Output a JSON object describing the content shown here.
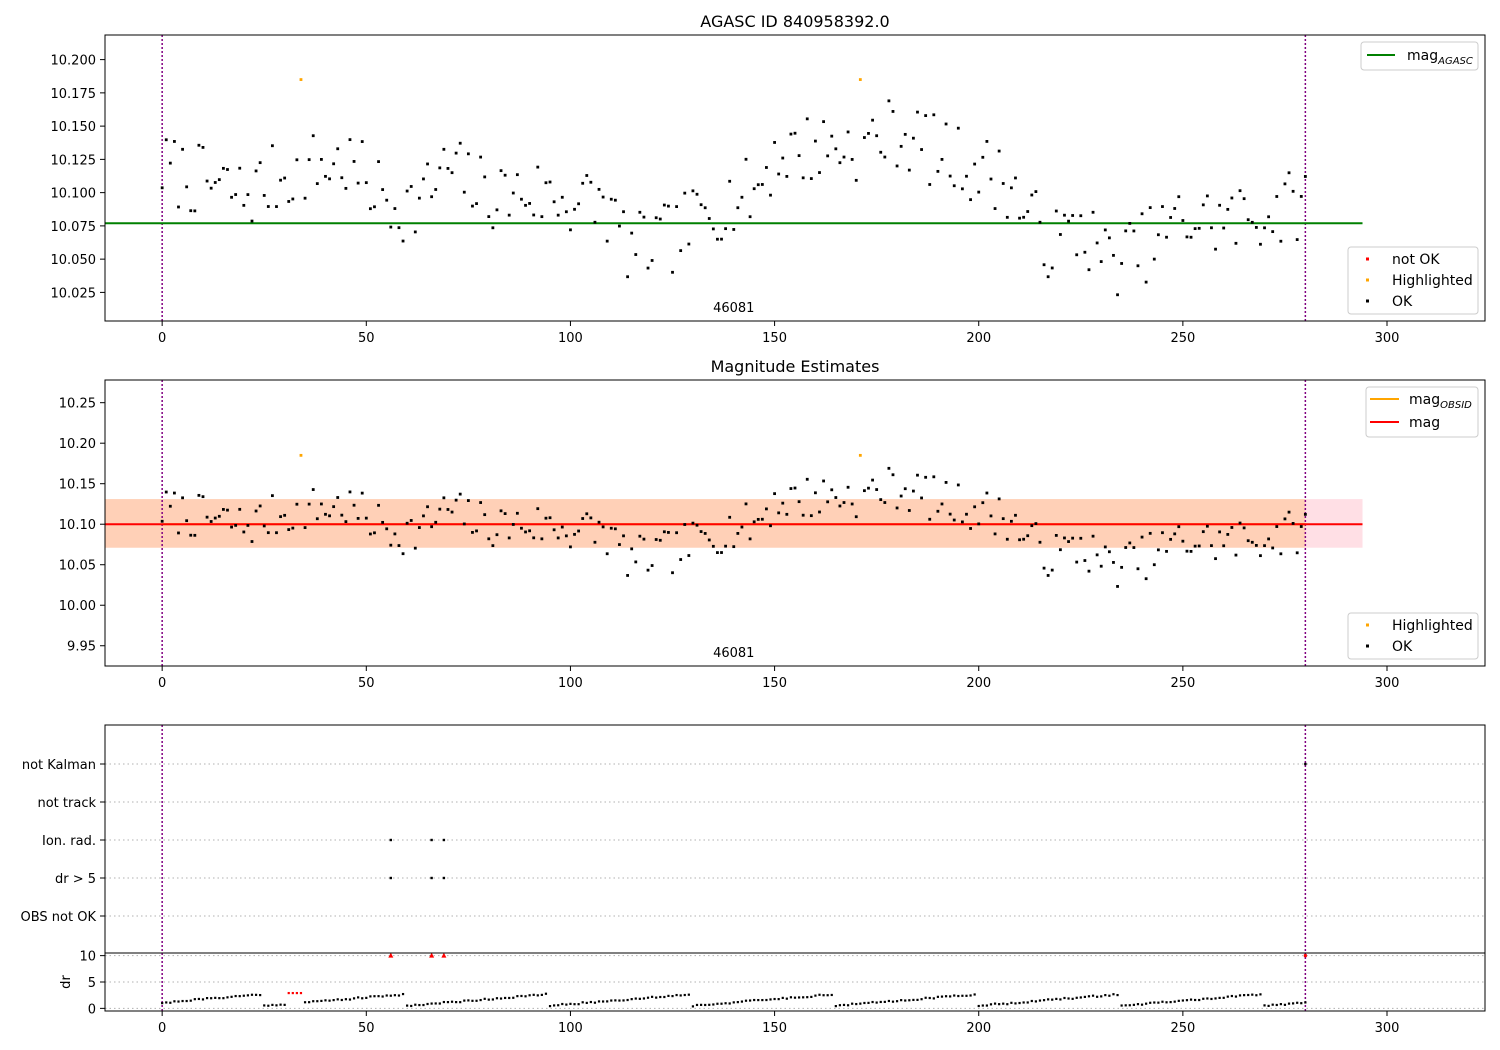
{
  "colors": {
    "ok": "#000000",
    "not_ok": "#ff0000",
    "highlighted": "#ffa500",
    "mag_agasc": "#008000",
    "mag_obsid": "#ffa500",
    "mag": "#ff0000",
    "band_mag": "#ffc0cb",
    "band_obsid": "#ffbf7f",
    "boundary": "#800080",
    "grid": "#b0b0b0"
  },
  "chart_data": [
    {
      "type": "scatter",
      "id": "agasc",
      "title": "AGASC ID 840958392.0",
      "xlim": [
        -14,
        324
      ],
      "ylim": [
        10.0035,
        10.2185
      ],
      "xticks": [
        0,
        50,
        100,
        150,
        200,
        250,
        300
      ],
      "yticks": [
        10.025,
        10.05,
        10.075,
        10.1,
        10.125,
        10.15,
        10.175,
        10.2
      ],
      "ytick_labels": [
        "10.025",
        "10.050",
        "10.075",
        "10.100",
        "10.125",
        "10.150",
        "10.175",
        "10.200"
      ],
      "hline": {
        "name": "mag_AGASC",
        "y": 10.077,
        "x": [
          -14,
          294
        ],
        "color": "#008000"
      },
      "obs_boundaries": [
        0,
        280
      ],
      "annotation": {
        "text": "46081",
        "x": 140
      },
      "legend_lines": [
        {
          "label": "mag",
          "sub": "AGASC",
          "color": "#008000"
        }
      ],
      "legend_points": [
        {
          "label": "not OK",
          "color": "#ff0000"
        },
        {
          "label": "Highlighted",
          "color": "#ffa500"
        },
        {
          "label": "OK",
          "color": "#000000"
        }
      ],
      "highlighted_points": [
        [
          34,
          10.185
        ],
        [
          171,
          10.185
        ]
      ]
    },
    {
      "type": "scatter",
      "id": "estimates",
      "title": "Magnitude Estimates",
      "xlim": [
        -14,
        324
      ],
      "ylim": [
        9.925,
        10.278
      ],
      "xticks": [
        0,
        50,
        100,
        150,
        200,
        250,
        300
      ],
      "yticks": [
        9.95,
        10.0,
        10.05,
        10.1,
        10.15,
        10.2,
        10.25
      ],
      "ytick_labels": [
        "9.95",
        "10.00",
        "10.05",
        "10.10",
        "10.15",
        "10.20",
        "10.25"
      ],
      "hline": {
        "name": "mag",
        "y": 10.1,
        "x": [
          -14,
          294
        ],
        "color": "#ff0000"
      },
      "band_mag": {
        "y": [
          10.071,
          10.131
        ],
        "x": [
          -14,
          294
        ]
      },
      "band_obsid": {
        "y": [
          10.071,
          10.131
        ],
        "x": [
          -14,
          280
        ]
      },
      "obsid_line": {
        "y": 10.1,
        "x": [
          0,
          280
        ]
      },
      "obs_boundaries": [
        0,
        280
      ],
      "annotation": {
        "text": "46081",
        "x": 140
      },
      "legend_lines": [
        {
          "label": "mag",
          "sub": "OBSID",
          "color": "#ffa500"
        },
        {
          "label": "mag",
          "sub": "",
          "color": "#ff0000"
        }
      ],
      "legend_points": [
        {
          "label": "Highlighted",
          "color": "#ffa500"
        },
        {
          "label": "OK",
          "color": "#000000"
        }
      ],
      "highlighted_points": [
        [
          34,
          10.185
        ],
        [
          171,
          10.185
        ]
      ]
    },
    {
      "type": "scatter",
      "id": "flags",
      "xlim": [
        -14,
        324
      ],
      "categories": [
        "not Kalman",
        "not track",
        "Ion. rad.",
        "dr > 5",
        "OBS not OK"
      ],
      "obs_boundaries": [
        0,
        280
      ],
      "flag_points": {
        "Ion. rad.": [
          56,
          66,
          69
        ],
        "dr > 5": [
          56,
          66,
          69
        ],
        "not Kalman": [
          280
        ]
      }
    },
    {
      "type": "scatter",
      "id": "dr",
      "ylabel": "dr",
      "xlim": [
        -14,
        324
      ],
      "ylim": [
        -0.5,
        10.5
      ],
      "xticks": [
        0,
        50,
        100,
        150,
        200,
        250,
        300
      ],
      "yticks": [
        0,
        5,
        10
      ],
      "ytick_labels": [
        "0",
        "5",
        "10"
      ],
      "obs_boundaries": [
        0,
        280
      ],
      "capped_points": [
        56,
        66,
        69
      ],
      "high_points": [
        [
          31,
          2.9
        ],
        [
          32,
          2.9
        ],
        [
          33,
          2.9
        ],
        [
          34,
          2.9
        ]
      ],
      "cap_value": 10
    }
  ]
}
